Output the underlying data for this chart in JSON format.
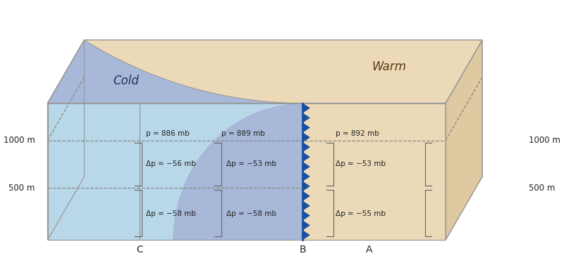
{
  "fig_width": 8.0,
  "fig_height": 3.64,
  "bg_color": "#ffffff",
  "cold_light": "#b8d8ea",
  "cold_medium": "#a8b8d8",
  "cold_dome_top": "#b0c0d8",
  "warm_color": "#ecd9b8",
  "warm_side": "#dfc9a0",
  "front_color": "#1850a0",
  "edge_color": "#999999",
  "text_color": "#222222",
  "label_cold": "Cold",
  "label_warm": "Warm",
  "label_C": "C",
  "label_B": "B",
  "label_A": "A",
  "p_886": "p = 886 mb",
  "p_889": "p = 889 mb",
  "p_892": "p = 892 mb",
  "dp_56": "Δp = −56 mb",
  "dp_53a": "Δp = −53 mb",
  "dp_58a": "Δp = −58 mb",
  "dp_58b": "Δp = −58 mb",
  "dp_53b": "Δp = −53 mb",
  "dp_55": "Δp = −55 mb",
  "label_1000m": "1000 m",
  "label_500m": "500 m"
}
